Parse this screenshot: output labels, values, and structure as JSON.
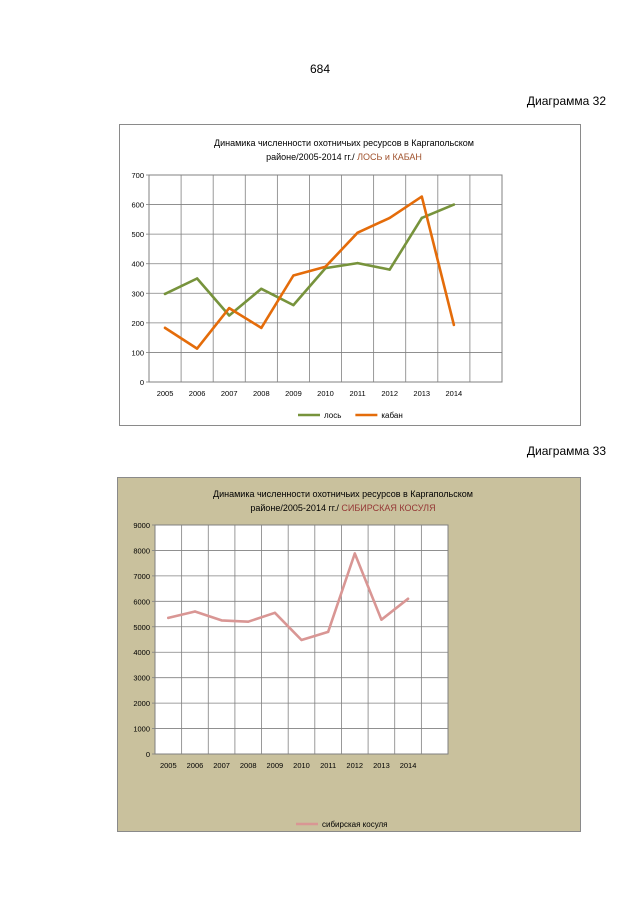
{
  "page": {
    "number": "684",
    "captions": [
      "Диаграмма 32",
      "Диаграмма 33"
    ]
  },
  "chart_data": [
    {
      "type": "line",
      "title_line1": "Динамика численности охотничьих ресурсов в Каргапольском",
      "title_line2": "районе/2005-2014 гг./",
      "title_highlight": "ЛОСЬ и КАБАН",
      "categories": [
        "2005",
        "2006",
        "2007",
        "2008",
        "2009",
        "2010",
        "2011",
        "2012",
        "2013",
        "2014"
      ],
      "ylim": [
        0,
        700
      ],
      "yticks": [
        0,
        100,
        200,
        300,
        400,
        500,
        600,
        700
      ],
      "grid": true,
      "legend_position": "bottom",
      "series": [
        {
          "name": "лось",
          "color": "#77933c",
          "values": [
            298,
            350,
            225,
            315,
            260,
            385,
            402,
            380,
            555,
            600
          ]
        },
        {
          "name": "кабан",
          "color": "#e46c0a",
          "values": [
            183,
            113,
            250,
            183,
            360,
            390,
            505,
            555,
            627,
            193
          ]
        }
      ]
    },
    {
      "type": "line",
      "title_line1": "Динамика численности  охотничьих  ресурсов  в  Каргапольском",
      "title_line2": "районе/2005-2014  гг./",
      "title_highlight": "СИБИРСКАЯ КОСУЛЯ",
      "categories": [
        "2005",
        "2006",
        "2007",
        "2008",
        "2009",
        "2010",
        "2011",
        "2012",
        "2013",
        "2014"
      ],
      "ylim": [
        0,
        9000
      ],
      "yticks": [
        0,
        1000,
        2000,
        3000,
        4000,
        5000,
        6000,
        7000,
        8000,
        9000
      ],
      "grid": true,
      "legend_position": "bottom",
      "series": [
        {
          "name": "сибирская косуля",
          "color": "#d99694",
          "values": [
            5350,
            5600,
            5250,
            5200,
            5550,
            4480,
            4800,
            7880,
            5280,
            6100
          ]
        }
      ]
    }
  ]
}
